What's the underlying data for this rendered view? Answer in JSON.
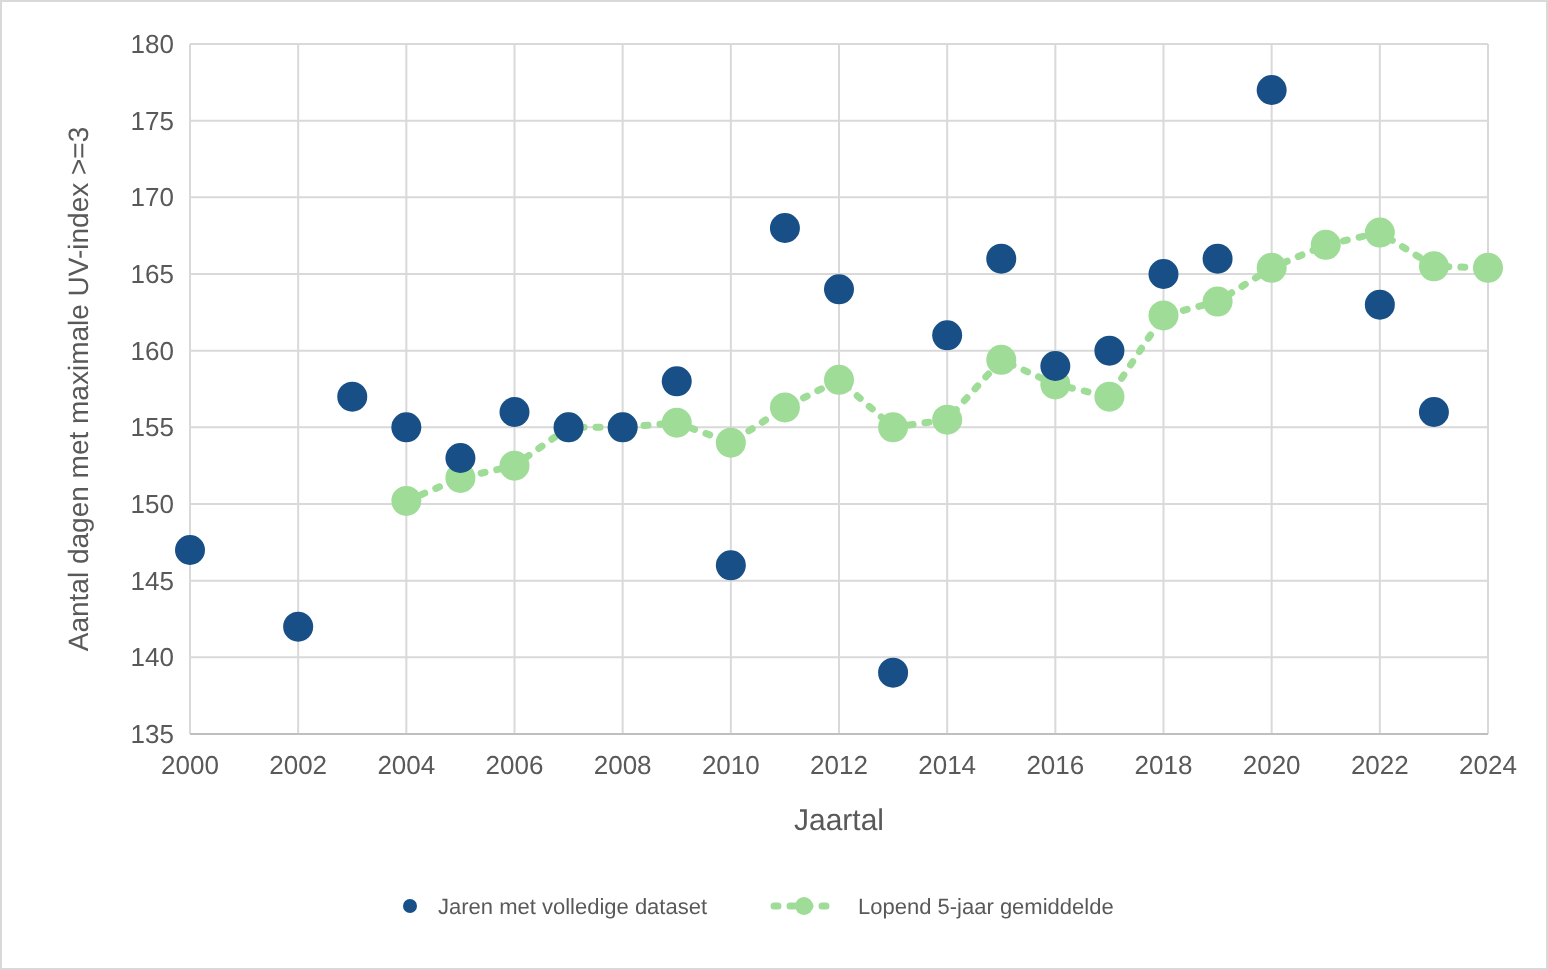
{
  "chart_data": {
    "type": "scatter",
    "xlabel": "Jaartal",
    "ylabel": "Aantal dagen met maximale UV-index >=3",
    "xlim": [
      2000,
      2024
    ],
    "xticks": [
      2000,
      2002,
      2004,
      2006,
      2008,
      2010,
      2012,
      2014,
      2016,
      2018,
      2020,
      2022,
      2024
    ],
    "ylim": [
      135,
      180
    ],
    "yticks": [
      135,
      140,
      145,
      150,
      155,
      160,
      165,
      170,
      175,
      180
    ],
    "grid": true,
    "legend": "bottom",
    "marker": "circle",
    "series": [
      {
        "name": "Jaren met volledige dataset",
        "color": "#174f86",
        "x": [
          2000,
          2002,
          2003,
          2004,
          2005,
          2006,
          2007,
          2008,
          2009,
          2010,
          2011,
          2012,
          2013,
          2014,
          2015,
          2016,
          2017,
          2018,
          2019,
          2020,
          2022,
          2023
        ],
        "values": [
          147,
          142,
          157,
          155,
          153,
          156,
          155,
          155,
          158,
          146,
          168,
          164,
          139,
          161,
          166,
          159,
          160,
          165,
          166,
          177,
          163,
          156
        ]
      },
      {
        "name": "Lopend 5-jaar gemiddelde",
        "type": "line",
        "line_style": "dotted",
        "color": "#9fdc97",
        "x": [
          2004,
          2005,
          2006,
          2007,
          2008,
          2009,
          2010,
          2011,
          2012,
          2013,
          2014,
          2015,
          2016,
          2017,
          2018,
          2019,
          2020,
          2021,
          2022,
          2023,
          2024
        ],
        "values": [
          150.2,
          151.7,
          152.5,
          155,
          155,
          155.3,
          154,
          156.3,
          158.1,
          155,
          155.5,
          159.4,
          157.8,
          157,
          162.3,
          163.2,
          165.4,
          166.9,
          167.7,
          165.5,
          165.4
        ]
      }
    ]
  }
}
